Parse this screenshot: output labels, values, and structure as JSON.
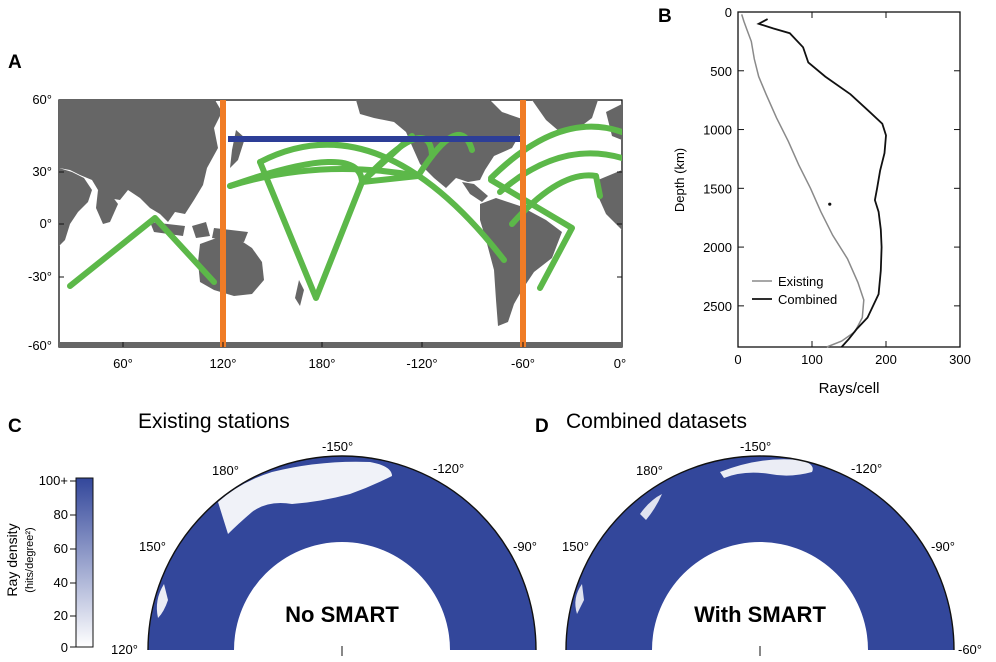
{
  "panels": {
    "a": {
      "letter": "A",
      "y_ticks": [
        "60°",
        "30°",
        "0°",
        "-30°",
        "-60°"
      ],
      "x_ticks": [
        "60°",
        "120°",
        "180°",
        "-120°",
        "-60°",
        "0°"
      ],
      "colors": {
        "land": "#666666",
        "ocean": "#ffffff",
        "paths": "#5cb849",
        "bounds": "#f07c26",
        "section": "#2d3e97"
      }
    },
    "b": {
      "letter": "B",
      "ylabel": "Depth (km)",
      "xlabel": "Rays/cell",
      "legend": {
        "existing": "Existing",
        "combined": "Combined"
      }
    },
    "c": {
      "letter": "C",
      "title": "Existing stations",
      "overlay": "No SMART",
      "angle_labels": {
        "a120": "120°",
        "a150": "150°",
        "a180": "180°",
        "am150": "-150°",
        "am120": "-120°",
        "am90": "-90°"
      }
    },
    "d": {
      "letter": "D",
      "title": "Combined datasets",
      "overlay": "With SMART",
      "angle_labels": {
        "a150": "150°",
        "a180": "180°",
        "am150": "-150°",
        "am120": "-120°",
        "am90": "-90°",
        "am60": "-60°"
      }
    },
    "colorbar": {
      "label": "Ray density",
      "units": "(hits/degree²)",
      "ticks": [
        "100+",
        "80",
        "60",
        "40",
        "20",
        "0"
      ],
      "color_low": "#ffffff",
      "color_high": "#33479b"
    }
  },
  "chart_data": {
    "type": "line",
    "title": "",
    "xlabel": "Rays/cell",
    "ylabel": "Depth (km)",
    "xlim": [
      0,
      300
    ],
    "ylim": [
      2850,
      0
    ],
    "x_ticks": [
      0,
      100,
      200,
      300
    ],
    "y_ticks": [
      0,
      500,
      1000,
      1500,
      2000,
      2500
    ],
    "series": [
      {
        "name": "Existing",
        "color": "#8a8a8a",
        "points": [
          [
            5,
            20
          ],
          [
            8,
            80
          ],
          [
            12,
            150
          ],
          [
            18,
            250
          ],
          [
            22,
            400
          ],
          [
            28,
            550
          ],
          [
            38,
            700
          ],
          [
            52,
            900
          ],
          [
            68,
            1100
          ],
          [
            82,
            1300
          ],
          [
            98,
            1500
          ],
          [
            112,
            1700
          ],
          [
            128,
            1900
          ],
          [
            148,
            2100
          ],
          [
            162,
            2300
          ],
          [
            170,
            2450
          ],
          [
            168,
            2600
          ],
          [
            158,
            2720
          ],
          [
            140,
            2800
          ],
          [
            120,
            2850
          ]
        ]
      },
      {
        "name": "Combined",
        "color": "#111111",
        "points": [
          [
            40,
            60
          ],
          [
            28,
            100
          ],
          [
            48,
            140
          ],
          [
            70,
            180
          ],
          [
            88,
            300
          ],
          [
            95,
            430
          ],
          [
            118,
            550
          ],
          [
            152,
            700
          ],
          [
            178,
            850
          ],
          [
            195,
            950
          ],
          [
            200,
            1050
          ],
          [
            198,
            1200
          ],
          [
            192,
            1350
          ],
          [
            188,
            1500
          ],
          [
            185,
            1600
          ],
          [
            190,
            1700
          ],
          [
            193,
            1850
          ],
          [
            194,
            2000
          ],
          [
            193,
            2200
          ],
          [
            190,
            2400
          ],
          [
            175,
            2600
          ],
          [
            160,
            2700
          ],
          [
            150,
            2780
          ],
          [
            140,
            2850
          ]
        ]
      }
    ],
    "annotations": [
      {
        "x": 124,
        "y": 1635,
        "text": ""
      }
    ]
  }
}
